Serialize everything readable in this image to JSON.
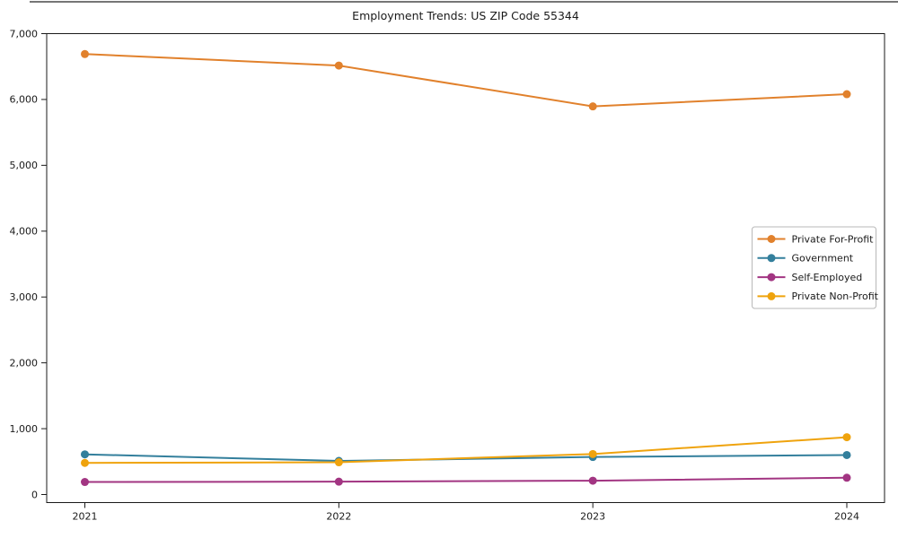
{
  "figure": {
    "background": "#ffffff",
    "axis_color": "#1a1a1a",
    "tick_label_color": "#1a1a1a",
    "window_top_border_color": "#2a2a2a"
  },
  "chart_data": {
    "type": "line",
    "title": "Employment Trends: US ZIP Code 55344",
    "xlabel": "",
    "ylabel": "",
    "x": [
      "2021",
      "2022",
      "2023",
      "2024"
    ],
    "series": [
      {
        "name": "Private For-Profit",
        "color": "#E1812C",
        "values": [
          6690,
          6515,
          5895,
          6080
        ]
      },
      {
        "name": "Government",
        "color": "#337F9C",
        "values": [
          610,
          510,
          570,
          600
        ]
      },
      {
        "name": "Self-Employed",
        "color": "#A23582",
        "values": [
          190,
          195,
          210,
          255
        ]
      },
      {
        "name": "Private Non-Profit",
        "color": "#EFA30D",
        "values": [
          480,
          490,
          615,
          870
        ]
      }
    ],
    "ylim": [
      0,
      7000
    ],
    "yticks": [
      0,
      1000,
      2000,
      3000,
      4000,
      5000,
      6000,
      7000
    ],
    "ytick_labels": [
      "0",
      "1,000",
      "2,000",
      "3,000",
      "4,000",
      "5,000",
      "6,000",
      "7,000"
    ],
    "grid": false,
    "marker": "circle",
    "legend": {
      "position": "center-right",
      "border_color": "#b8b8b8",
      "background": "#ffffff"
    }
  }
}
